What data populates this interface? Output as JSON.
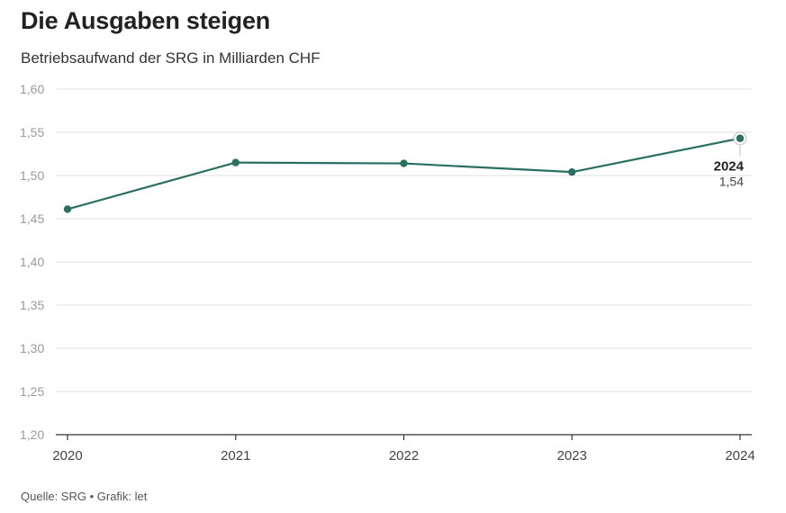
{
  "header": {
    "title": "Die Ausgaben steigen",
    "subtitle": "Betriebsaufwand der SRG in Milliarden CHF"
  },
  "footer": {
    "source": "Quelle: SRG • Grafik: let"
  },
  "colors": {
    "line": "#2a6f62",
    "grid": "#e2e2e2",
    "axis": "#333333"
  },
  "chart_data": {
    "type": "line",
    "title": "Die Ausgaben steigen",
    "subtitle": "Betriebsaufwand der SRG in Milliarden CHF",
    "x": [
      2020,
      2021,
      2022,
      2023,
      2024
    ],
    "x_tick_labels": [
      "2020",
      "2021",
      "2022",
      "2023",
      "2024"
    ],
    "series": [
      {
        "values": [
          1.461,
          1.515,
          1.514,
          1.504,
          1.543
        ]
      }
    ],
    "ylim": [
      1.2,
      1.6
    ],
    "y_ticks": [
      1.6,
      1.55,
      1.5,
      1.45,
      1.4,
      1.35,
      1.3,
      1.25,
      1.2
    ],
    "y_tick_labels": [
      "1,60",
      "1,55",
      "1,50",
      "1,45",
      "1,40",
      "1,35",
      "1,30",
      "1,25",
      "1,20"
    ],
    "grid": true,
    "annotation": {
      "label": "2024",
      "value_text": "1,54"
    }
  }
}
